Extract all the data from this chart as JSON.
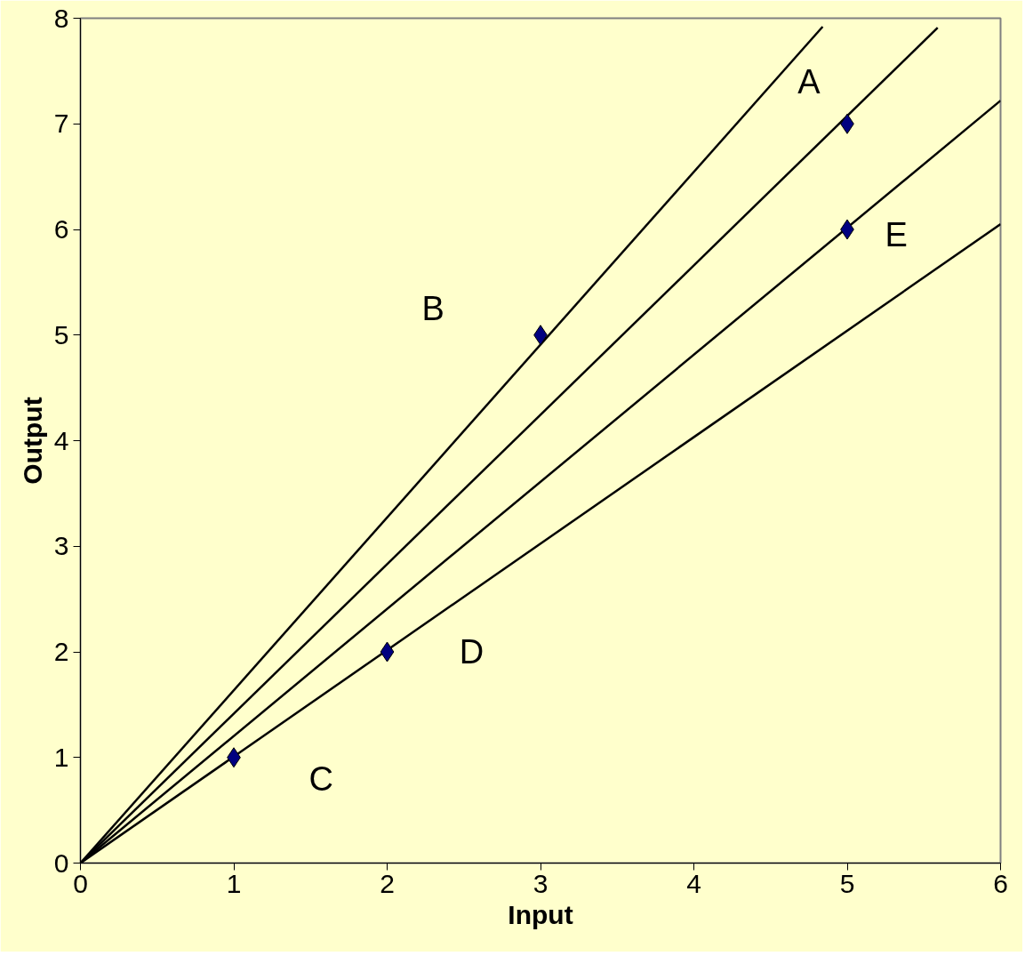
{
  "chart_data": {
    "type": "line",
    "xlabel": "Input",
    "ylabel": "Output",
    "xlim": [
      0,
      6
    ],
    "ylim": [
      0,
      8
    ],
    "xticks": [
      0,
      1,
      2,
      3,
      4,
      5,
      6
    ],
    "yticks": [
      0,
      1,
      2,
      3,
      4,
      5,
      6,
      7,
      8
    ],
    "grid": false,
    "marker": "none",
    "line_style": "solid",
    "series": [
      {
        "color": "#000000",
        "x": [
          0,
          4.84
        ],
        "values": [
          0,
          7.92
        ]
      },
      {
        "color": "#000000",
        "x": [
          0,
          5.59
        ],
        "values": [
          0,
          7.91
        ]
      },
      {
        "color": "#000000",
        "x": [
          0,
          6
        ],
        "values": [
          0,
          7.22
        ]
      },
      {
        "color": "#000000",
        "x": [
          0,
          6
        ],
        "values": [
          0,
          6.05
        ]
      },
      {
        "type": "scatter",
        "marker": "diamond",
        "color": "#000080",
        "x": [
          1,
          2,
          3,
          5,
          5
        ],
        "values": [
          1,
          2,
          5,
          7,
          6
        ]
      }
    ],
    "annotations": [
      "A",
      "B",
      "C",
      "D",
      "E"
    ]
  }
}
